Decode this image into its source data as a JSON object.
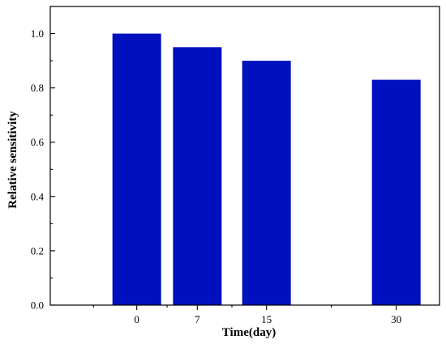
{
  "chart_data": {
    "type": "bar",
    "x": [
      0,
      7,
      15,
      30
    ],
    "categories": [
      "0",
      "7",
      "15",
      "30"
    ],
    "values": [
      1.0,
      0.95,
      0.9,
      0.83
    ],
    "xlabel": "Time(day)",
    "ylabel": "Relative sensitivity",
    "xlim": [
      -10,
      35
    ],
    "ylim": [
      0.0,
      1.1
    ],
    "yticks": [
      "0.0",
      "0.2",
      "0.4",
      "0.6",
      "0.8",
      "1.0"
    ],
    "bar_color": "#0010be",
    "grid": false,
    "legend": "none"
  }
}
